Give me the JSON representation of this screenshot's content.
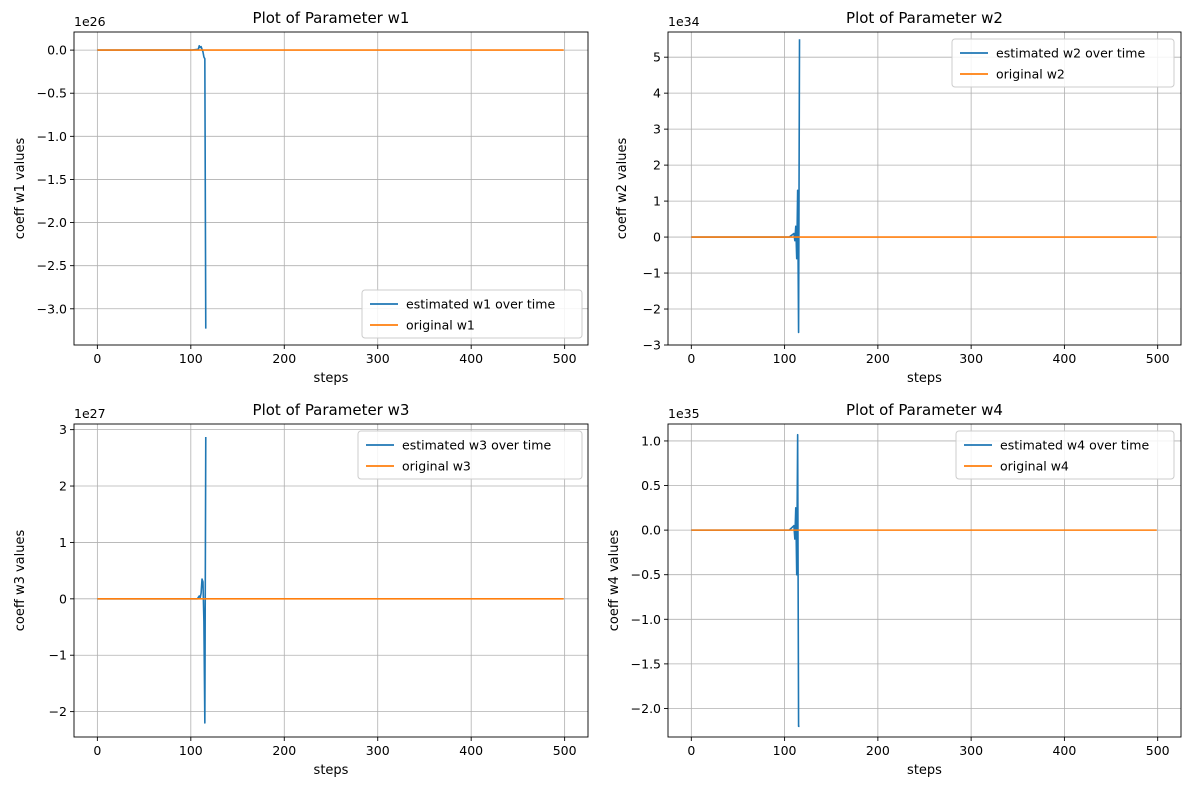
{
  "colors": {
    "estimated": "#1f77b4",
    "original": "#ff7f0e",
    "grid": "#b0b0b0",
    "legend_border": "#cccccc"
  },
  "chart_data": [
    {
      "type": "line",
      "title": "Plot of Parameter w1",
      "xlabel": "steps",
      "ylabel": "coeff w1 values",
      "offset_text": "1e26",
      "scale": 1e+26,
      "xlim": [
        -25,
        525
      ],
      "ylim": [
        -3.42,
        0.21
      ],
      "x_ticks": [
        0,
        100,
        200,
        300,
        400,
        500
      ],
      "x_tick_labels": [
        "0",
        "100",
        "200",
        "300",
        "400",
        "500"
      ],
      "y_ticks": [
        0.0,
        -0.5,
        -1.0,
        -1.5,
        -2.0,
        -2.5,
        -3.0
      ],
      "y_tick_labels": [
        "0.0",
        "−0.5",
        "−1.0",
        "−1.5",
        "−2.0",
        "−2.5",
        "−3.0"
      ],
      "grid": true,
      "legend_position": "lower-right",
      "series": [
        {
          "name": "estimated w1 over time",
          "color": "#1f77b4",
          "x": [
            0,
            100,
            108,
            109,
            110,
            111,
            112,
            113,
            114,
            115,
            116
          ],
          "y": [
            0,
            0,
            0.01,
            0.05,
            0.03,
            0.04,
            0.01,
            -0.02,
            -0.08,
            -0.1,
            -3.23
          ]
        },
        {
          "name": "original w1",
          "color": "#ff7f0e",
          "x": [
            0,
            499
          ],
          "y": [
            0,
            0
          ]
        }
      ]
    },
    {
      "type": "line",
      "title": "Plot of Parameter  w2",
      "xlabel": "steps",
      "ylabel": "coeff  w2 values",
      "offset_text": "1e34",
      "scale": 1e+34,
      "xlim": [
        -25,
        525
      ],
      "ylim": [
        -3.0,
        5.7
      ],
      "x_ticks": [
        0,
        100,
        200,
        300,
        400,
        500
      ],
      "x_tick_labels": [
        "0",
        "100",
        "200",
        "300",
        "400",
        "500"
      ],
      "y_ticks": [
        5,
        4,
        3,
        2,
        1,
        0,
        -1,
        -2,
        -3
      ],
      "y_tick_labels": [
        "5",
        "4",
        "3",
        "2",
        "1",
        "0",
        "−1",
        "−2",
        "−3"
      ],
      "grid": true,
      "legend_position": "upper-right",
      "series": [
        {
          "name": "estimated  w2 over time",
          "color": "#1f77b4",
          "x": [
            0,
            105,
            110,
            111,
            112,
            113,
            114,
            115,
            116
          ],
          "y": [
            0,
            0,
            0.1,
            -0.1,
            0.3,
            -0.6,
            1.3,
            -2.65,
            5.5
          ]
        },
        {
          "name": "original w2",
          "color": "#ff7f0e",
          "x": [
            0,
            499
          ],
          "y": [
            0,
            0
          ]
        }
      ]
    },
    {
      "type": "line",
      "title": "Plot of Parameter w3",
      "xlabel": "steps",
      "ylabel": "coeff w3 values",
      "offset_text": "1e27",
      "scale": 1e+27,
      "xlim": [
        -25,
        525
      ],
      "ylim": [
        -2.45,
        3.1
      ],
      "x_ticks": [
        0,
        100,
        200,
        300,
        400,
        500
      ],
      "x_tick_labels": [
        "0",
        "100",
        "200",
        "300",
        "400",
        "500"
      ],
      "y_ticks": [
        3,
        2,
        1,
        0,
        -1,
        -2
      ],
      "y_tick_labels": [
        "3",
        "2",
        "1",
        "0",
        "−1",
        "−2"
      ],
      "grid": true,
      "legend_position": "upper-right",
      "series": [
        {
          "name": "estimated w3 over time",
          "color": "#1f77b4",
          "x": [
            0,
            107,
            109,
            110,
            111,
            112,
            113,
            114,
            115,
            116
          ],
          "y": [
            0,
            0,
            0.05,
            0.02,
            0.1,
            0.35,
            0.3,
            -0.4,
            -2.2,
            2.87
          ]
        },
        {
          "name": "original w3",
          "color": "#ff7f0e",
          "x": [
            0,
            499
          ],
          "y": [
            0,
            0
          ]
        }
      ]
    },
    {
      "type": "line",
      "title": "Plot of Parameter w4",
      "xlabel": "steps",
      "ylabel": "coeff w4 values",
      "offset_text": "1e35",
      "scale": 1e+35,
      "xlim": [
        -25,
        525
      ],
      "ylim": [
        -2.32,
        1.19
      ],
      "x_ticks": [
        0,
        100,
        200,
        300,
        400,
        500
      ],
      "x_tick_labels": [
        "0",
        "100",
        "200",
        "300",
        "400",
        "500"
      ],
      "y_ticks": [
        1.0,
        0.5,
        0.0,
        -0.5,
        -1.0,
        -1.5,
        -2.0
      ],
      "y_tick_labels": [
        "1.0",
        "0.5",
        "0.0",
        "−0.5",
        "−1.0",
        "−1.5",
        "−2.0"
      ],
      "grid": true,
      "legend_position": "upper-right",
      "series": [
        {
          "name": "estimated w4 over time",
          "color": "#1f77b4",
          "x": [
            0,
            105,
            110,
            111,
            112,
            113,
            114,
            115,
            116
          ],
          "y": [
            0,
            0,
            0.05,
            -0.1,
            0.25,
            -0.5,
            1.07,
            -2.2,
            -2.2
          ]
        },
        {
          "name": "original w4",
          "color": "#ff7f0e",
          "x": [
            0,
            499
          ],
          "y": [
            0,
            0
          ]
        }
      ]
    }
  ]
}
